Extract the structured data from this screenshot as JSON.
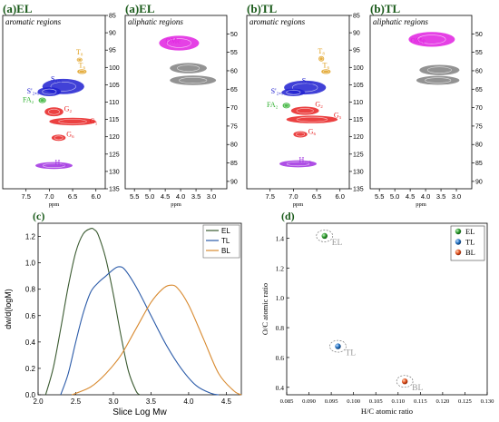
{
  "chart_data": [
    {
      "type": "scatter",
      "panel": "(a)EL",
      "region": "aromatic regions",
      "xlabel": "ppm",
      "xlim": [
        8.0,
        5.8
      ],
      "ylim": [
        135,
        85
      ],
      "xticks": [
        "7.5",
        "7.0",
        "6.5",
        "6.0"
      ],
      "yticks": [
        "85",
        "90",
        "95",
        "100",
        "105",
        "110",
        "115",
        "120",
        "125",
        "130",
        "135"
      ],
      "colors": {
        "T": "#e0a020",
        "S": "#2020d0",
        "FA": "#30b030",
        "G": "#e82020",
        "H": "#a030e0"
      },
      "labels": [
        {
          "text": "T₈",
          "x": 6.35,
          "y": 96.3,
          "color": "#e0a020"
        },
        {
          "text": "T₆",
          "x": 6.3,
          "y": 100.0,
          "color": "#e0a020"
        },
        {
          "text": "S₂,₆",
          "x": 6.85,
          "y": 104.0,
          "color": "#2020d0"
        },
        {
          "text": "S'₂,₆",
          "x": 7.35,
          "y": 107.5,
          "color": "#2020d0"
        },
        {
          "text": "FA₂",
          "x": 7.45,
          "y": 110.0,
          "color": "#30b030"
        },
        {
          "text": "G₂",
          "x": 6.6,
          "y": 112.6,
          "color": "#e82020"
        },
        {
          "text": "G₅",
          "x": 6.05,
          "y": 116.2,
          "color": "#e82020"
        },
        {
          "text": "G₆",
          "x": 6.55,
          "y": 120.0,
          "color": "#e82020"
        },
        {
          "text": "H₂,₆",
          "x": 6.75,
          "y": 128.0,
          "color": "#a030e0"
        }
      ]
    },
    {
      "type": "scatter",
      "panel": "(a)EL",
      "region": "aliphatic regions",
      "xlabel": "ppm",
      "xlim": [
        5.8,
        2.5
      ],
      "ylim": [
        92,
        45
      ],
      "xticks": [
        "5.5",
        "5.0",
        "4.5",
        "4.0",
        "3.5",
        "3.0"
      ],
      "yticks": [
        "50",
        "55",
        "60",
        "65",
        "70",
        "75",
        "80",
        "85",
        "90"
      ],
      "labels": [
        {
          "text": "OMe",
          "x": 4.25,
          "y": 52.5,
          "color": "#e020e0"
        }
      ]
    },
    {
      "type": "scatter",
      "panel": "(b)TL",
      "region": "aromatic regions",
      "xlabel": "ppm",
      "xlim": [
        8.0,
        5.8
      ],
      "ylim": [
        135,
        85
      ],
      "xticks": [
        "7.5",
        "7.0",
        "6.5",
        "6.0"
      ],
      "yticks": [
        "85",
        "90",
        "95",
        "100",
        "105",
        "110",
        "115",
        "120",
        "125",
        "130",
        "135"
      ],
      "labels": [
        {
          "text": "T₈",
          "x": 6.4,
          "y": 96.0,
          "color": "#e0a020"
        },
        {
          "text": "T₆",
          "x": 6.3,
          "y": 100.0,
          "color": "#e0a020"
        },
        {
          "text": "S₂,₆",
          "x": 6.7,
          "y": 104.5,
          "color": "#2020d0"
        },
        {
          "text": "S'₂,₆",
          "x": 7.35,
          "y": 107.5,
          "color": "#2020d0"
        },
        {
          "text": "FA₂",
          "x": 7.45,
          "y": 111.5,
          "color": "#30b030"
        },
        {
          "text": "G₂",
          "x": 6.45,
          "y": 111.3,
          "color": "#e82020"
        },
        {
          "text": "G₅",
          "x": 6.05,
          "y": 114.5,
          "color": "#e82020"
        },
        {
          "text": "G₆",
          "x": 6.6,
          "y": 119.2,
          "color": "#e82020"
        },
        {
          "text": "H₂,₆",
          "x": 6.75,
          "y": 127.3,
          "color": "#a030e0"
        }
      ]
    },
    {
      "type": "scatter",
      "panel": "(b)TL",
      "region": "aliphatic regions",
      "xlabel": "ppm",
      "xlim": [
        5.8,
        2.5
      ],
      "ylim": [
        92,
        45
      ],
      "xticks": [
        "5.5",
        "5.0",
        "4.5",
        "4.0",
        "3.5",
        "3.0"
      ],
      "yticks": [
        "50",
        "55",
        "60",
        "65",
        "70",
        "75",
        "80",
        "85",
        "90"
      ],
      "labels": [
        {
          "text": "OMe",
          "x": 4.25,
          "y": 52.5,
          "color": "#e020e0"
        }
      ]
    },
    {
      "type": "line",
      "panel": "(c)",
      "xlabel": "Slice Log Mw",
      "ylabel": "dw/d(logM)",
      "xlim": [
        2.0,
        4.7
      ],
      "ylim": [
        0.0,
        1.3
      ],
      "xticks": [
        "2.0",
        "2.5",
        "3.0",
        "3.5",
        "4.0",
        "4.5"
      ],
      "yticks": [
        "0.0",
        "0.2",
        "0.4",
        "0.6",
        "0.8",
        "1.0",
        "1.2"
      ],
      "legend_position": "top-right",
      "series": [
        {
          "name": "EL",
          "color": "#3a5a30",
          "x": [
            2.1,
            2.2,
            2.3,
            2.4,
            2.5,
            2.6,
            2.7,
            2.75,
            2.8,
            2.9,
            3.0,
            3.1,
            3.2,
            3.3,
            3.35
          ],
          "y": [
            0.0,
            0.2,
            0.5,
            0.82,
            1.08,
            1.22,
            1.26,
            1.25,
            1.21,
            1.03,
            0.76,
            0.45,
            0.18,
            0.03,
            0.0
          ]
        },
        {
          "name": "TL",
          "color": "#2a5aa8",
          "x": [
            2.3,
            2.4,
            2.5,
            2.6,
            2.7,
            2.8,
            2.9,
            3.0,
            3.07,
            3.15,
            3.3,
            3.5,
            3.7,
            3.9,
            4.1,
            4.3,
            4.4
          ],
          "y": [
            0.0,
            0.16,
            0.4,
            0.62,
            0.78,
            0.85,
            0.9,
            0.95,
            0.97,
            0.95,
            0.82,
            0.6,
            0.38,
            0.2,
            0.07,
            0.01,
            0.0
          ]
        },
        {
          "name": "BL",
          "color": "#d88a30",
          "x": [
            2.45,
            2.7,
            2.9,
            3.1,
            3.3,
            3.5,
            3.65,
            3.75,
            3.85,
            4.0,
            4.2,
            4.4,
            4.6,
            4.7
          ],
          "y": [
            0.0,
            0.06,
            0.16,
            0.3,
            0.5,
            0.7,
            0.8,
            0.83,
            0.81,
            0.68,
            0.42,
            0.16,
            0.03,
            0.0
          ]
        }
      ]
    },
    {
      "type": "scatter",
      "panel": "(d)",
      "xlabel": "H/C atomic ratio",
      "ylabel": "O/C atomic ratio",
      "xlim": [
        0.085,
        0.13
      ],
      "ylim": [
        0.35,
        1.5
      ],
      "xticks": [
        "0.085",
        "0.090",
        "0.095",
        "0.100",
        "0.105",
        "0.110",
        "0.115",
        "0.120",
        "0.125",
        "0.130"
      ],
      "yticks": [
        "0.4",
        "0.6",
        "0.8",
        "1.0",
        "1.2",
        "1.4"
      ],
      "legend_position": "top-right",
      "series": [
        {
          "name": "EL",
          "color": "#2a9a2a",
          "x": [
            0.0935
          ],
          "y": [
            1.415
          ]
        },
        {
          "name": "TL",
          "color": "#2070c0",
          "x": [
            0.0965
          ],
          "y": [
            0.675
          ]
        },
        {
          "name": "BL",
          "color": "#e05020",
          "x": [
            0.1115
          ],
          "y": [
            0.44
          ]
        }
      ]
    }
  ],
  "panel_colors": {
    "aliphatic_gray": "#808080",
    "ome": "#e020e0",
    "heading": "#1a5a1a"
  }
}
